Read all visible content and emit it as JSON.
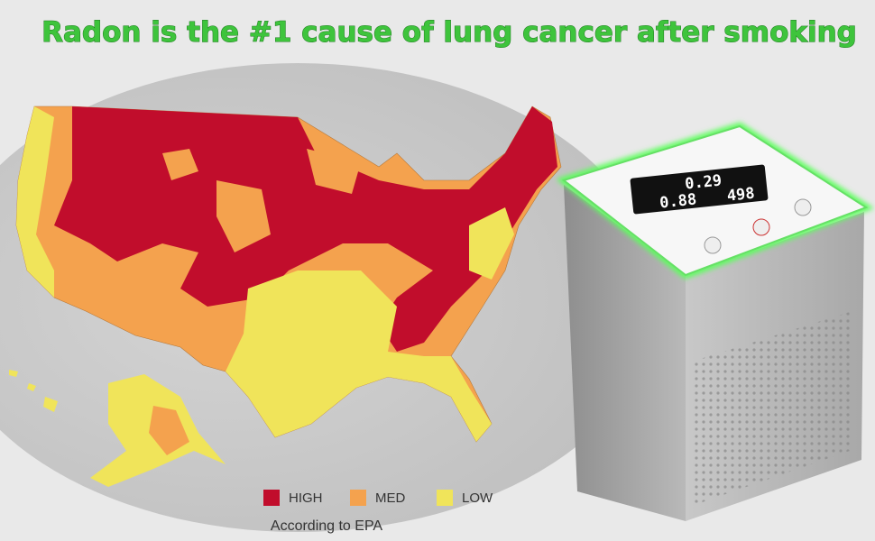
{
  "header": {
    "title": "Radon is the #1 cause of lung cancer after smoking"
  },
  "legend": [
    {
      "label": "HIGH",
      "color": "#c10d2c"
    },
    {
      "label": "MED",
      "color": "#f4a24e"
    },
    {
      "label": "LOW",
      "color": "#f0e45a"
    }
  ],
  "source": "According to EPA",
  "device": {
    "readings": [
      "0.29",
      "0.88",
      "498"
    ]
  }
}
